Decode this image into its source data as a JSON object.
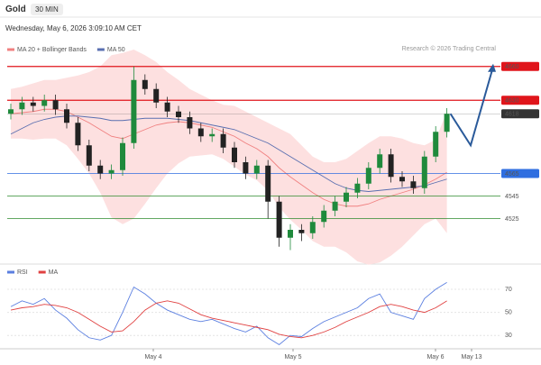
{
  "header": {
    "symbol": "Gold",
    "interval": "30 MIN",
    "timestamp": "Wednesday, May 6, 2026 3:09:10 AM CET",
    "credit": "Research © 2026 Trading Central"
  },
  "chart_data": [
    {
      "type": "candlestick",
      "legend": [
        {
          "name": "MA 20 + Bollinger Bands",
          "color": "#f08080"
        },
        {
          "name": "MA 50",
          "color": "#5a6fb0"
        }
      ],
      "ylim": [
        4487,
        4683
      ],
      "up_color": "#1f8a3c",
      "down_color": "#222222",
      "open": [
        4618,
        4622,
        4628,
        4625,
        4630,
        4622,
        4610,
        4590,
        4572,
        4565,
        4568,
        4592,
        4648,
        4640,
        4628,
        4620,
        4615,
        4605,
        4598,
        4600,
        4588,
        4575,
        4565,
        4572,
        4540,
        4508,
        4515,
        4512,
        4522,
        4532,
        4540,
        4548,
        4556,
        4570,
        4582,
        4562,
        4558,
        4552,
        4580,
        4602
      ],
      "high": [
        4627,
        4633,
        4633,
        4635,
        4635,
        4627,
        4615,
        4595,
        4577,
        4573,
        4597,
        4660,
        4653,
        4645,
        4633,
        4625,
        4620,
        4610,
        4605,
        4605,
        4593,
        4580,
        4577,
        4577,
        4545,
        4520,
        4520,
        4527,
        4537,
        4545,
        4553,
        4561,
        4575,
        4587,
        4587,
        4567,
        4563,
        4585,
        4607,
        4623
      ],
      "low": [
        4613,
        4617,
        4620,
        4620,
        4617,
        4605,
        4585,
        4567,
        4560,
        4560,
        4563,
        4587,
        4635,
        4623,
        4615,
        4610,
        4600,
        4593,
        4593,
        4583,
        4570,
        4560,
        4560,
        4525,
        4500,
        4497,
        4505,
        4507,
        4517,
        4527,
        4535,
        4543,
        4551,
        4565,
        4557,
        4553,
        4547,
        4547,
        4575,
        4597
      ],
      "close": [
        4622,
        4628,
        4625,
        4630,
        4622,
        4610,
        4590,
        4572,
        4565,
        4568,
        4592,
        4648,
        4640,
        4628,
        4620,
        4615,
        4605,
        4598,
        4600,
        4588,
        4575,
        4565,
        4572,
        4540,
        4508,
        4515,
        4512,
        4522,
        4532,
        4540,
        4548,
        4556,
        4570,
        4582,
        4562,
        4558,
        4552,
        4580,
        4602,
        4618
      ],
      "ma20": [
        4618,
        4619,
        4620,
        4622,
        4622,
        4620,
        4615,
        4610,
        4604,
        4598,
        4596,
        4600,
        4604,
        4608,
        4610,
        4611,
        4610,
        4608,
        4606,
        4602,
        4598,
        4592,
        4587,
        4580,
        4570,
        4562,
        4555,
        4548,
        4542,
        4538,
        4536,
        4536,
        4538,
        4542,
        4545,
        4548,
        4551,
        4555,
        4560,
        4566
      ],
      "bb_upper": [
        4640,
        4642,
        4645,
        4648,
        4648,
        4650,
        4652,
        4655,
        4660,
        4670,
        4672,
        4675,
        4670,
        4664,
        4655,
        4648,
        4640,
        4635,
        4630,
        4626,
        4625,
        4620,
        4615,
        4610,
        4605,
        4600,
        4590,
        4580,
        4575,
        4575,
        4578,
        4585,
        4592,
        4598,
        4598,
        4596,
        4592,
        4590,
        4595,
        4620
      ],
      "bb_lower": [
        4596,
        4596,
        4595,
        4596,
        4596,
        4590,
        4578,
        4565,
        4548,
        4526,
        4520,
        4525,
        4538,
        4552,
        4565,
        4574,
        4580,
        4581,
        4582,
        4578,
        4571,
        4564,
        4559,
        4550,
        4535,
        4524,
        4515,
        4505,
        4500,
        4500,
        4495,
        4487,
        4484,
        4486,
        4492,
        4500,
        4510,
        4520,
        4525,
        4512
      ],
      "ma50": [
        4600,
        4605,
        4610,
        4613,
        4615,
        4616,
        4616,
        4615,
        4614,
        4612,
        4612,
        4613,
        4614,
        4614,
        4614,
        4613,
        4612,
        4610,
        4608,
        4606,
        4604,
        4600,
        4596,
        4592,
        4586,
        4580,
        4574,
        4568,
        4562,
        4556,
        4552,
        4550,
        4549,
        4550,
        4551,
        4552,
        4553,
        4554,
        4557,
        4560
      ],
      "forecast": [
        4618,
        4590,
        4660
      ],
      "forecast_color": "#2a5a9a",
      "levels": [
        {
          "value": 4660,
          "color": "#e0151b"
        },
        {
          "value": 4630,
          "color": "#e0151b"
        },
        {
          "value": 4618,
          "color": "#333333"
        },
        {
          "value": 4565,
          "color": "#2f6ee0"
        },
        {
          "value": 4545,
          "color": "#2e8b2e"
        },
        {
          "value": 4525,
          "color": "#2e8b2e"
        }
      ],
      "xtick_labels": [
        "May 4",
        "May 5",
        "May 6",
        "May 13"
      ]
    },
    {
      "type": "line",
      "legend": [
        {
          "name": "RSI",
          "color": "#5b7fe0"
        },
        {
          "name": "MA",
          "color": "#e04040"
        }
      ],
      "ylim": [
        20,
        88
      ],
      "yticks": [
        30,
        50,
        70
      ],
      "series": [
        {
          "name": "RSI",
          "color": "#5b7fe0",
          "values": [
            55,
            60,
            57,
            62,
            52,
            45,
            35,
            28,
            26,
            30,
            50,
            72,
            66,
            58,
            52,
            48,
            44,
            42,
            44,
            40,
            36,
            33,
            38,
            28,
            22,
            30,
            29,
            36,
            42,
            46,
            50,
            54,
            62,
            66,
            50,
            47,
            44,
            62,
            70,
            76
          ]
        },
        {
          "name": "MA",
          "color": "#e04040",
          "values": [
            52,
            54,
            55,
            57,
            56,
            54,
            50,
            44,
            38,
            33,
            34,
            42,
            52,
            58,
            60,
            58,
            53,
            48,
            45,
            43,
            41,
            39,
            37,
            35,
            31,
            29,
            28,
            30,
            33,
            37,
            42,
            46,
            50,
            55,
            57,
            55,
            52,
            50,
            54,
            60
          ]
        }
      ]
    }
  ]
}
